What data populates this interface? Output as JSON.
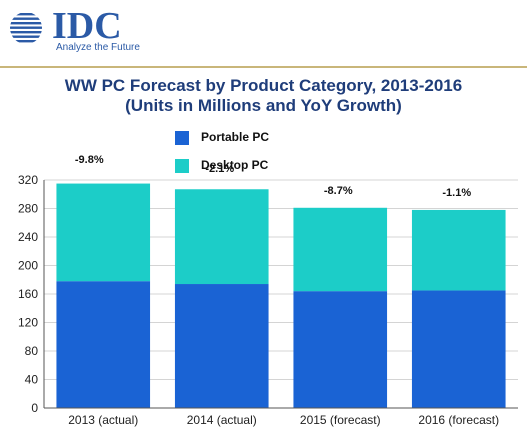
{
  "brand": {
    "name": "IDC",
    "tagline": "Analyze the Future",
    "color": "#2b5aa6"
  },
  "chart_data": {
    "type": "bar",
    "stacked": true,
    "title_line1": "WW PC Forecast by Product Category, 2013-2016",
    "title_line2": "(Units in Millions and YoY Growth)",
    "categories": [
      "2013 (actual)",
      "2014 (actual)",
      "2015 (forecast)",
      "2016 (forecast)"
    ],
    "series": [
      {
        "name": "Portable PC",
        "color": "#1a63d4",
        "values": [
          178,
          174,
          164,
          165
        ]
      },
      {
        "name": "Desktop PC",
        "color": "#1ccdc8",
        "values": [
          137,
          133,
          117,
          113
        ]
      }
    ],
    "annotations": [
      "-9.8%",
      "-2.1%",
      "-8.7%",
      "-1.1%"
    ],
    "ylim": [
      0,
      320
    ],
    "yticks": [
      0,
      40,
      80,
      120,
      160,
      200,
      240,
      280,
      320
    ],
    "grid": true,
    "legend_position": "top-center"
  }
}
